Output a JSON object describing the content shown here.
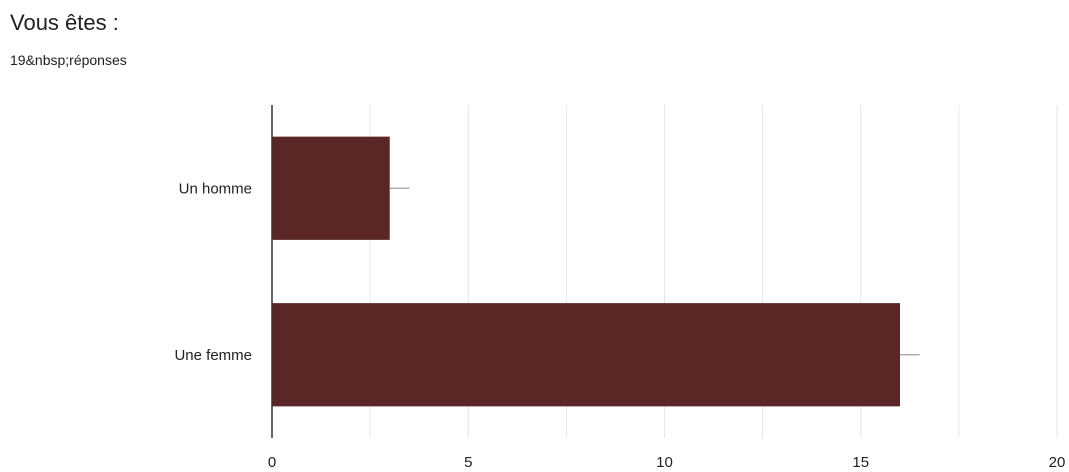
{
  "question": {
    "title": "Vous êtes :",
    "responses": "19&nbsp;réponses"
  },
  "colors": {
    "bar": "#5a2626",
    "grid": "#e6e6e6",
    "axis": "#333333",
    "error_bar": "#9e9e9e",
    "text": "#202124"
  },
  "chart_data": {
    "type": "bar",
    "orientation": "horizontal",
    "categories": [
      "Un homme",
      "Une femme"
    ],
    "values": [
      3,
      16
    ],
    "error_bar_upper": [
      3.5,
      16.5
    ],
    "xlim": [
      0,
      20
    ],
    "xticks": [
      0,
      5,
      10,
      15,
      20
    ],
    "grid": true,
    "legend": "none"
  }
}
